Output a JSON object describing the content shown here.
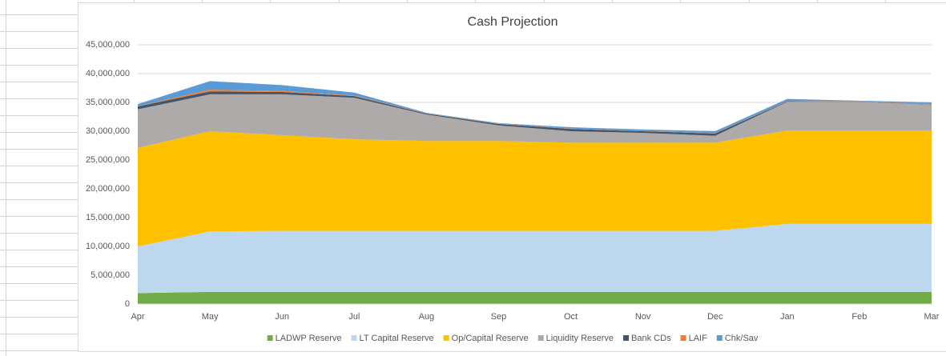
{
  "chart_data": {
    "type": "stacked_area",
    "title": "Cash Projection",
    "categories": [
      "Apr",
      "May",
      "Jun",
      "Jul",
      "Aug",
      "Sep",
      "Oct",
      "Nov",
      "Dec",
      "Jan",
      "Feb",
      "Mar"
    ],
    "series": [
      {
        "name": "LADWP Reserve",
        "color": "#70ad47",
        "values": [
          1900000,
          2100000,
          2100000,
          2100000,
          2100000,
          2100000,
          2100000,
          2100000,
          2100000,
          2100000,
          2100000,
          2100000
        ]
      },
      {
        "name": "LT Capital Reserve",
        "color": "#bdd7ee",
        "values": [
          8100000,
          10500000,
          10600000,
          10600000,
          10600000,
          10600000,
          10600000,
          10600000,
          10600000,
          11800000,
          11800000,
          11800000
        ]
      },
      {
        "name": "Op/Capital Reserve",
        "color": "#ffc000",
        "values": [
          17100000,
          17400000,
          16600000,
          15900000,
          15600000,
          15600000,
          15300000,
          15300000,
          15300000,
          16200000,
          16200000,
          16200000
        ]
      },
      {
        "name": "Liquidity Reserve",
        "color": "#aeaaaa",
        "values": [
          6700000,
          6400000,
          7100000,
          7200000,
          4600000,
          2700000,
          2000000,
          1700000,
          1200000,
          5000000,
          5000000,
          4500000
        ]
      },
      {
        "name": "Bank CDs",
        "color": "#44546a",
        "values": [
          500000,
          500000,
          400000,
          300000,
          150000,
          250000,
          400000,
          300000,
          400000,
          100000,
          50000,
          50000
        ]
      },
      {
        "name": "LAIF",
        "color": "#ed7d31",
        "values": [
          50000,
          300000,
          200000,
          100000,
          50000,
          50000,
          50000,
          50000,
          50000,
          50000,
          50000,
          50000
        ]
      },
      {
        "name": "Chk/Sav",
        "color": "#5b9bd5",
        "values": [
          350000,
          1500000,
          1000000,
          500000,
          100000,
          100000,
          250000,
          250000,
          350000,
          350000,
          100000,
          300000
        ]
      }
    ],
    "ylim": [
      0,
      45000000
    ],
    "yticks": [
      0,
      {
        "value": 5000000,
        "label": "5,000,000"
      },
      {
        "value": 10000000,
        "label": "10,000,000"
      },
      {
        "value": 15000000,
        "label": "15,000,000"
      },
      {
        "value": 20000000,
        "label": "20,000,000"
      },
      {
        "value": 25000000,
        "label": "25,000,000"
      },
      {
        "value": 30000000,
        "label": "30,000,000"
      },
      {
        "value": 35000000,
        "label": "35,000,000"
      },
      {
        "value": 40000000,
        "label": "40,000,000"
      },
      {
        "value": 45000000,
        "label": "45,000,000"
      }
    ],
    "grid": true,
    "legend": "bottom"
  }
}
